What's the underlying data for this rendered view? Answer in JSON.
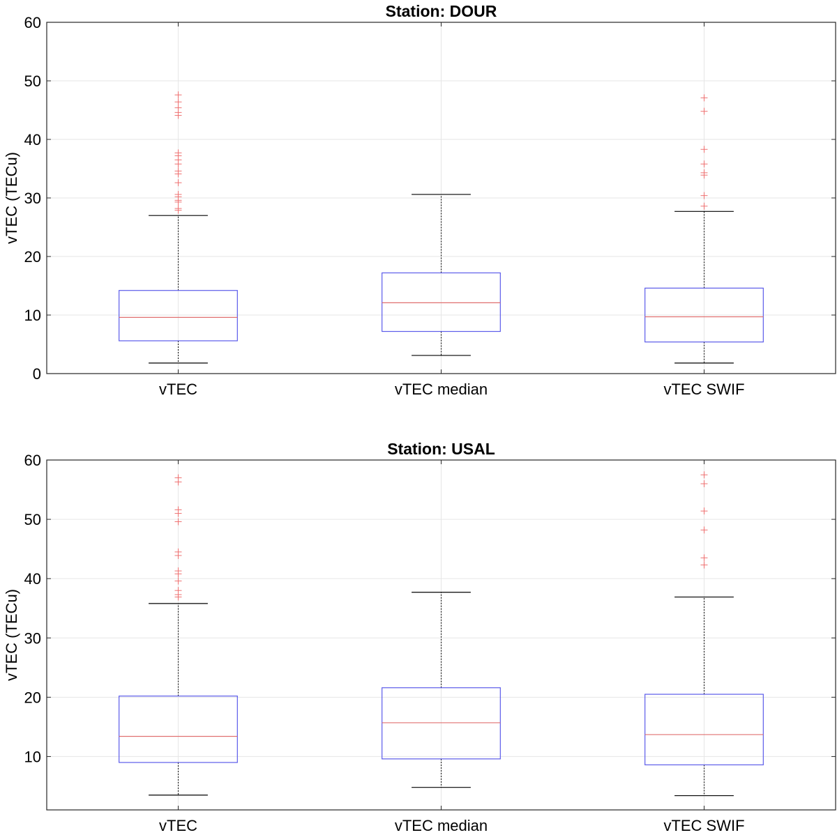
{
  "chart_data": [
    {
      "type": "box",
      "title": "Station: DOUR",
      "ylabel": "vTEC (TECu)",
      "ylim": [
        0,
        60
      ],
      "yticks": [
        0,
        10,
        20,
        30,
        40,
        50,
        60
      ],
      "grid": true,
      "categories": [
        "vTEC",
        "vTEC median",
        "vTEC SWIF"
      ],
      "boxes": [
        {
          "whisker_low": 1.8,
          "q1": 5.6,
          "median": 9.6,
          "q3": 14.2,
          "whisker_high": 27.0,
          "outliers": [
            27.9,
            28.2,
            29.3,
            29.6,
            30.2,
            30.6,
            32.6,
            34.1,
            34.6,
            35.8,
            36.5,
            37.2,
            37.7,
            44.1,
            44.6,
            45.4,
            46.4,
            47.6
          ]
        },
        {
          "whisker_low": 3.1,
          "q1": 7.2,
          "median": 12.1,
          "q3": 17.2,
          "whisker_high": 30.6,
          "outliers": []
        },
        {
          "whisker_low": 1.8,
          "q1": 5.4,
          "median": 9.7,
          "q3": 14.6,
          "whisker_high": 27.7,
          "outliers": [
            28.6,
            30.4,
            33.9,
            34.3,
            35.8,
            38.3,
            44.8,
            47.1
          ]
        }
      ]
    },
    {
      "type": "box",
      "title": "Station: USAL",
      "ylabel": "vTEC (TECu)",
      "ylim": [
        1,
        60
      ],
      "yticks": [
        10,
        20,
        30,
        40,
        50,
        60
      ],
      "grid": true,
      "categories": [
        "vTEC",
        "vTEC median",
        "vTEC SWIF"
      ],
      "boxes": [
        {
          "whisker_low": 3.5,
          "q1": 9.0,
          "median": 13.4,
          "q3": 20.2,
          "whisker_high": 35.8,
          "outliers": [
            36.9,
            37.3,
            38.0,
            39.6,
            40.8,
            41.3,
            43.9,
            44.5,
            49.6,
            51.0,
            51.6,
            56.3,
            57.0
          ]
        },
        {
          "whisker_low": 4.8,
          "q1": 9.6,
          "median": 15.7,
          "q3": 21.6,
          "whisker_high": 37.7,
          "outliers": []
        },
        {
          "whisker_low": 3.4,
          "q1": 8.6,
          "median": 13.7,
          "q3": 20.5,
          "whisker_high": 36.9,
          "outliers": [
            42.3,
            43.5,
            48.2,
            51.4,
            56.0,
            57.5
          ]
        }
      ]
    }
  ],
  "colors": {
    "box": "#5b5bea",
    "median": "#e07070",
    "outlier": "#ee7070",
    "whisker": "#000000",
    "grid": "#e6e6e6",
    "axis": "#262626",
    "text": "#000000"
  }
}
